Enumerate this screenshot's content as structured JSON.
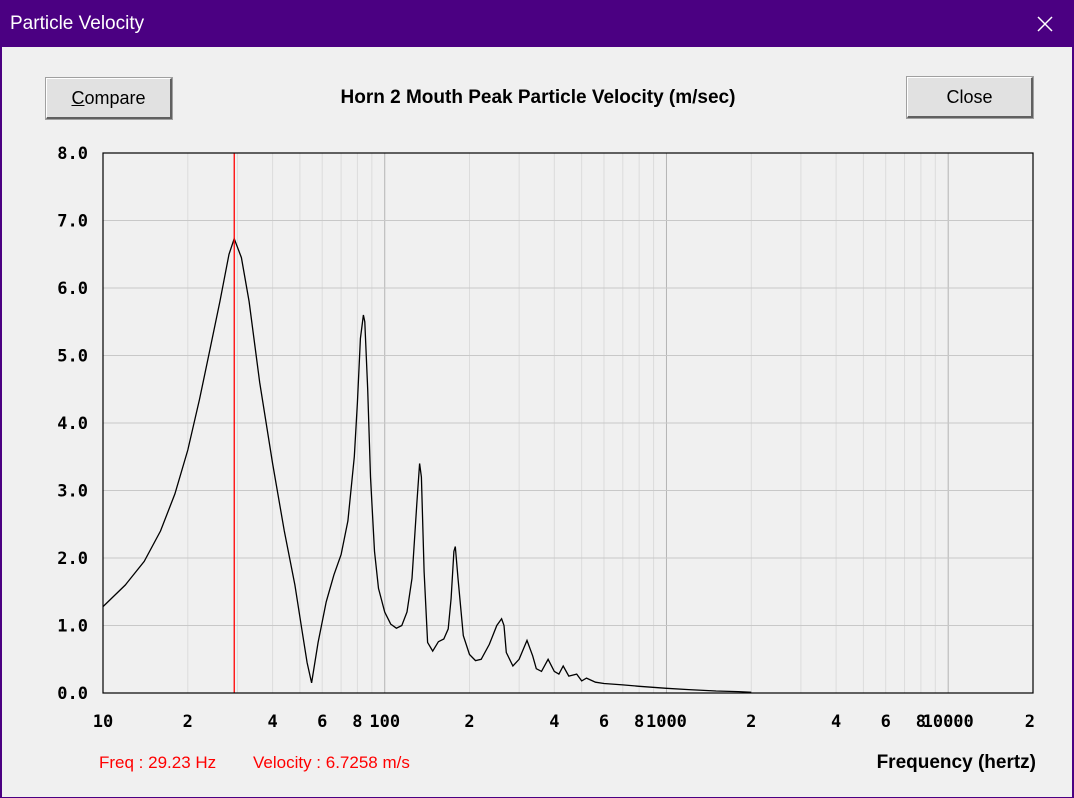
{
  "window": {
    "title": "Particle Velocity"
  },
  "buttons": {
    "compare_first": "C",
    "compare_rest": "ompare",
    "close": "Close"
  },
  "readout": {
    "freq": "Freq : 29.23 Hz",
    "velocity": "Velocity : 6.7258 m/s"
  },
  "colors": {
    "titlebar": "#4b0082",
    "cursor": "#ff0000",
    "curve": "#000000",
    "grid": "#c8c8c8"
  },
  "chart_data": {
    "type": "line",
    "title": "Horn 2 Mouth Peak Particle Velocity (m/sec)",
    "xlabel": "Frequency (hertz)",
    "ylabel": "",
    "xscale": "log",
    "xlim": [
      10,
      20000
    ],
    "ylim": [
      0,
      8
    ],
    "grid": true,
    "y_ticks": [
      "0.0",
      "1.0",
      "2.0",
      "3.0",
      "4.0",
      "5.0",
      "6.0",
      "7.0",
      "8.0"
    ],
    "x_tick_labels": [
      {
        "f": 10,
        "label": "10"
      },
      {
        "f": 20,
        "label": "2"
      },
      {
        "f": 40,
        "label": "4"
      },
      {
        "f": 60,
        "label": "6"
      },
      {
        "f": 80,
        "label": "8"
      },
      {
        "f": 100,
        "label": "100"
      },
      {
        "f": 200,
        "label": "2"
      },
      {
        "f": 400,
        "label": "4"
      },
      {
        "f": 600,
        "label": "6"
      },
      {
        "f": 800,
        "label": "8"
      },
      {
        "f": 1000,
        "label": "1000"
      },
      {
        "f": 2000,
        "label": "2"
      },
      {
        "f": 4000,
        "label": "4"
      },
      {
        "f": 6000,
        "label": "6"
      },
      {
        "f": 8000,
        "label": "8"
      },
      {
        "f": 10000,
        "label": "10000"
      },
      {
        "f": 20000,
        "label": "2"
      }
    ],
    "cursor_freq": 29.23,
    "series": [
      {
        "x": [
          10,
          12,
          14,
          16,
          18,
          20,
          22,
          24,
          26,
          28,
          29.23,
          31,
          33,
          36,
          40,
          44,
          48,
          51,
          53,
          55,
          58,
          62,
          66,
          70,
          74,
          78,
          80,
          82,
          84,
          85,
          87,
          89,
          92,
          95,
          100,
          105,
          110,
          115,
          120,
          125,
          130,
          133,
          135,
          138,
          142,
          148,
          155,
          162,
          168,
          172,
          176,
          178,
          182,
          190,
          200,
          210,
          220,
          235,
          250,
          260,
          265,
          270,
          285,
          300,
          320,
          335,
          345,
          360,
          380,
          400,
          415,
          430,
          450,
          480,
          500,
          520,
          560,
          600,
          700,
          800,
          1000,
          1200,
          1500,
          1800,
          2000
        ],
        "y": [
          1.28,
          1.6,
          1.95,
          2.4,
          2.95,
          3.6,
          4.35,
          5.1,
          5.8,
          6.5,
          6.73,
          6.45,
          5.8,
          4.6,
          3.4,
          2.4,
          1.6,
          0.9,
          0.45,
          0.15,
          0.75,
          1.35,
          1.75,
          2.05,
          2.55,
          3.5,
          4.3,
          5.25,
          5.6,
          5.5,
          4.5,
          3.2,
          2.1,
          1.55,
          1.2,
          1.02,
          0.96,
          1.0,
          1.2,
          1.7,
          2.8,
          3.4,
          3.2,
          1.8,
          0.75,
          0.62,
          0.76,
          0.8,
          0.95,
          1.4,
          2.1,
          2.17,
          1.7,
          0.85,
          0.57,
          0.48,
          0.5,
          0.72,
          1.0,
          1.1,
          1.0,
          0.6,
          0.4,
          0.5,
          0.78,
          0.55,
          0.36,
          0.32,
          0.5,
          0.32,
          0.28,
          0.4,
          0.25,
          0.28,
          0.18,
          0.22,
          0.16,
          0.14,
          0.12,
          0.1,
          0.07,
          0.05,
          0.03,
          0.02,
          0.01
        ]
      }
    ]
  }
}
